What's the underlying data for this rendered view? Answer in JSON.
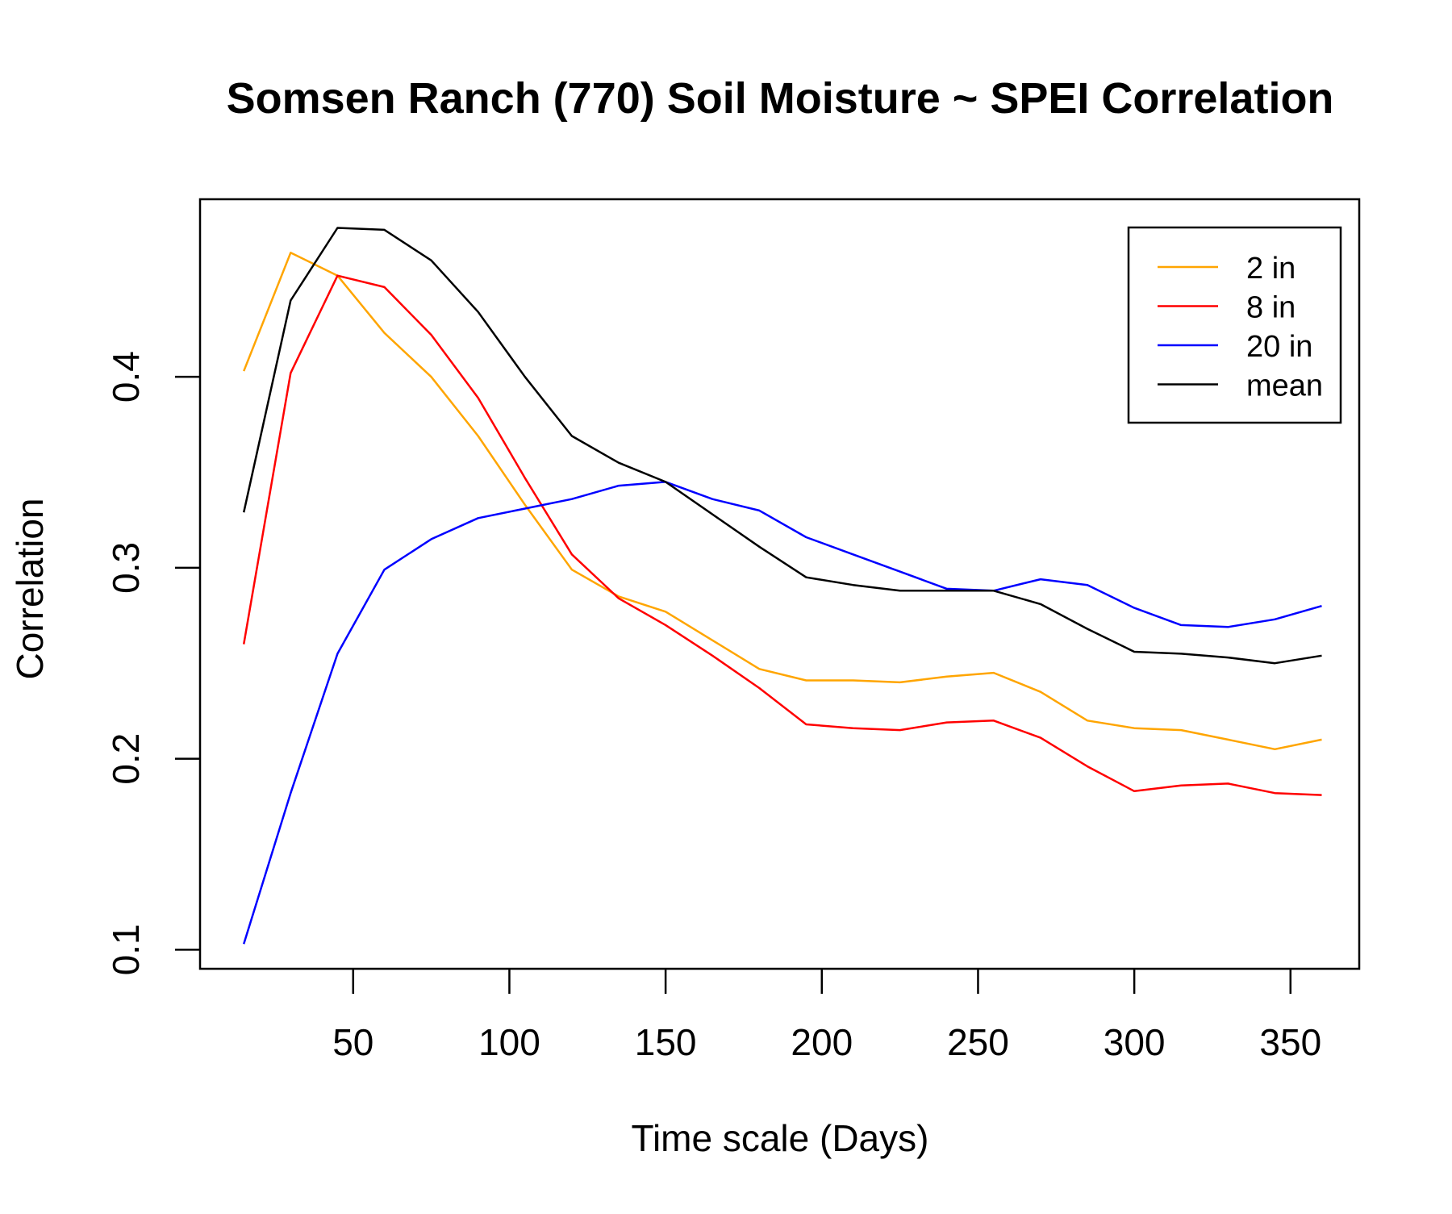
{
  "chart_data": {
    "type": "line",
    "title": "Somsen Ranch (770) Soil Moisture ~ SPEI Correlation",
    "xlabel": "Time scale (Days)",
    "ylabel": "Correlation",
    "xlim": [
      1,
      372
    ],
    "ylim": [
      0.09,
      0.493
    ],
    "x_ticks": [
      50,
      100,
      150,
      200,
      250,
      300,
      350
    ],
    "y_ticks": [
      0.1,
      0.2,
      0.3,
      0.4
    ],
    "grid": false,
    "legend_position": "top-right",
    "x": [
      15,
      30,
      45,
      60,
      75,
      90,
      105,
      120,
      135,
      150,
      165,
      180,
      195,
      210,
      225,
      240,
      255,
      270,
      285,
      300,
      315,
      330,
      345,
      360
    ],
    "series": [
      {
        "name": "2 in",
        "color": "#FFA500",
        "values": [
          0.403,
          0.465,
          0.453,
          0.423,
          0.4,
          0.369,
          0.333,
          0.299,
          0.285,
          0.277,
          0.262,
          0.247,
          0.241,
          0.241,
          0.24,
          0.243,
          0.245,
          0.235,
          0.22,
          0.216,
          0.215,
          0.21,
          0.205,
          0.21
        ]
      },
      {
        "name": "8 in",
        "color": "#FF0000",
        "values": [
          0.26,
          0.402,
          0.453,
          0.447,
          0.422,
          0.389,
          0.347,
          0.307,
          0.284,
          0.27,
          0.254,
          0.237,
          0.218,
          0.216,
          0.215,
          0.219,
          0.22,
          0.211,
          0.196,
          0.183,
          0.186,
          0.187,
          0.182,
          0.181
        ]
      },
      {
        "name": "20 in",
        "color": "#0000FF",
        "values": [
          0.103,
          0.182,
          0.255,
          0.299,
          0.315,
          0.326,
          0.331,
          0.336,
          0.343,
          0.345,
          0.336,
          0.33,
          0.316,
          0.307,
          0.298,
          0.289,
          0.288,
          0.294,
          0.291,
          0.279,
          0.27,
          0.269,
          0.273,
          0.28
        ]
      },
      {
        "name": "mean",
        "color": "#000000",
        "values": [
          0.329,
          0.44,
          0.478,
          0.477,
          0.461,
          0.434,
          0.4,
          0.369,
          0.355,
          0.345,
          0.328,
          0.311,
          0.295,
          0.291,
          0.288,
          0.288,
          0.288,
          0.281,
          0.268,
          0.256,
          0.255,
          0.253,
          0.25,
          0.254
        ]
      }
    ]
  }
}
